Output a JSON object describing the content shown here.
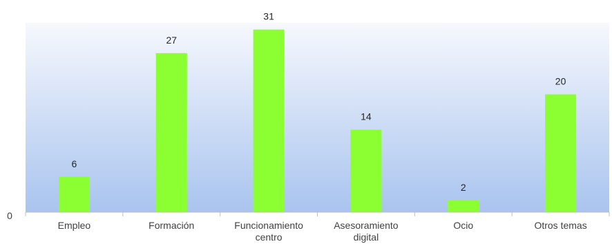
{
  "chart_data": {
    "type": "bar",
    "title": "",
    "xlabel": "",
    "ylabel": "",
    "categories": [
      [
        "Empleo"
      ],
      [
        "Formación"
      ],
      [
        "Funcionamiento",
        "centro"
      ],
      [
        "Asesoramiento",
        "digital"
      ],
      [
        "Ocio"
      ],
      [
        "Otros temas"
      ]
    ],
    "values": [
      6,
      27,
      31,
      14,
      2,
      20
    ],
    "ylim": [
      0,
      31.2
    ],
    "y_ticks": [
      "0"
    ],
    "grid": false,
    "legend": "none",
    "colors": {
      "bar": "#8cff33",
      "plot_top": "#f6f8fd",
      "plot_bottom": "#a9c4ef",
      "axis": "#bfbfbf"
    }
  }
}
